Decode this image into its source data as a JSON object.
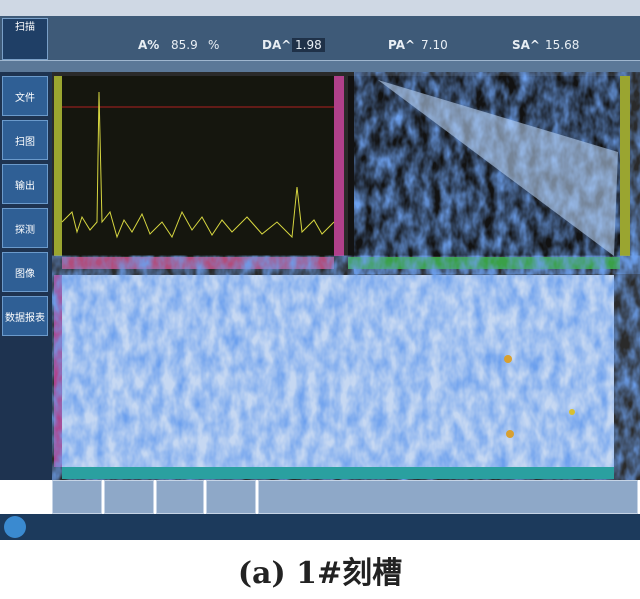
{
  "header": {
    "mode": "扫描",
    "readouts": [
      {
        "label": "A%",
        "value": "85.9",
        "unit": "%"
      },
      {
        "label": "DA^",
        "value": "1.98"
      },
      {
        "label": "PA^",
        "value": "7.10"
      },
      {
        "label": "SA^",
        "value": "15.68"
      }
    ]
  },
  "left_menu": [
    "文件",
    "扫图",
    "输出",
    "探测",
    "图像",
    "数据报表"
  ],
  "caption": "(a) 1#刻槽"
}
